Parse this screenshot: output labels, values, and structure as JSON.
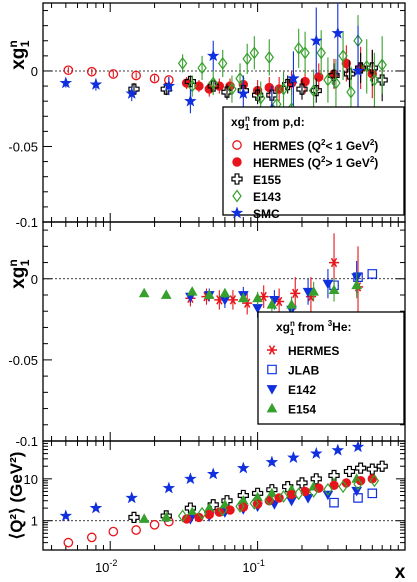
{
  "colors": {
    "red": "#e8141c",
    "blue": "#1030e0",
    "green": "#36a02c",
    "black": "#000000"
  },
  "chart_data": [
    {
      "type": "scatter",
      "panel": "top",
      "xscale": "log",
      "xlim": [
        0.0035,
        1.0
      ],
      "ylim": [
        -0.1,
        0.045
      ],
      "yticks": [
        0,
        -0.05,
        -0.1
      ],
      "ytick_labels": [
        "0",
        "-0.05",
        "-0.1"
      ],
      "ylabel": {
        "base": "xg",
        "sup": "n",
        "sub": "1"
      },
      "zero_line": true,
      "legend": {
        "placement": "bottom-right",
        "title": {
          "base": "xg",
          "sup": "n",
          "sub": "1",
          "tail": " from p,d:"
        },
        "entries": [
          {
            "series": 0,
            "parts": [
              "HERMES (Q",
              "2",
              "< 1 GeV",
              "2",
              ")"
            ]
          },
          {
            "series": 1,
            "parts": [
              "HERMES (Q",
              "2",
              "> 1 GeV",
              "2",
              ")"
            ]
          },
          {
            "series": 2,
            "parts": [
              "E155"
            ]
          },
          {
            "series": 3,
            "parts": [
              "E143"
            ]
          },
          {
            "series": 4,
            "parts": [
              "SMC"
            ]
          }
        ]
      },
      "series": [
        {
          "name": "HERMES (Q2< 1 GeV2)",
          "marker": "open-circle",
          "color": "#e8141c",
          "x": [
            0.0052,
            0.0075,
            0.0105,
            0.015,
            0.02,
            0.025
          ],
          "y": [
            0.0005,
            -0.0005,
            -0.002,
            -0.003,
            -0.005,
            -0.006
          ],
          "err": [
            0.002,
            0.002,
            0.002,
            0.002,
            0.002,
            0.002
          ]
        },
        {
          "name": "HERMES (Q2> 1 GeV2)",
          "marker": "filled-circle",
          "color": "#e8141c",
          "x": [
            0.033,
            0.04,
            0.047,
            0.055,
            0.065,
            0.08,
            0.1,
            0.12,
            0.14,
            0.17,
            0.21,
            0.26,
            0.33,
            0.4,
            0.5,
            0.6
          ],
          "y": [
            -0.008,
            -0.01,
            -0.012,
            -0.01,
            -0.01,
            -0.009,
            -0.013,
            -0.011,
            -0.012,
            -0.008,
            -0.007,
            -0.004,
            -0.002,
            0.005,
            0.002,
            -0.002
          ],
          "err": [
            0.004,
            0.004,
            0.005,
            0.005,
            0.005,
            0.006,
            0.007,
            0.007,
            0.008,
            0.008,
            0.008,
            0.009,
            0.01,
            0.012,
            0.014,
            0.016
          ]
        },
        {
          "name": "E155",
          "marker": "open-cross",
          "color": "#000000",
          "x": [
            0.0145,
            0.024,
            0.035,
            0.05,
            0.062,
            0.08,
            0.1,
            0.125,
            0.16,
            0.2,
            0.25,
            0.33,
            0.42,
            0.5,
            0.6,
            0.7
          ],
          "y": [
            -0.012,
            -0.012,
            -0.007,
            -0.01,
            -0.014,
            -0.013,
            -0.016,
            -0.016,
            -0.009,
            -0.012,
            -0.013,
            -0.003,
            -0.002,
            0.002,
            0.002,
            -0.006
          ],
          "err": [
            0.004,
            0.004,
            0.004,
            0.004,
            0.005,
            0.005,
            0.006,
            0.006,
            0.006,
            0.007,
            0.008,
            0.008,
            0.009,
            0.01,
            0.012,
            0.014
          ]
        },
        {
          "name": "E143",
          "marker": "open-diamond",
          "color": "#36a02c",
          "x": [
            0.031,
            0.036,
            0.042,
            0.05,
            0.058,
            0.067,
            0.076,
            0.085,
            0.095,
            0.105,
            0.12,
            0.135,
            0.15,
            0.17,
            0.19,
            0.21,
            0.24,
            0.27,
            0.3,
            0.34,
            0.38,
            0.43,
            0.48,
            0.55,
            0.62,
            0.7
          ],
          "y": [
            0.005,
            -0.01,
            0.002,
            -0.008,
            0.005,
            -0.012,
            -0.005,
            0.008,
            0.012,
            -0.018,
            0.009,
            -0.022,
            -0.012,
            -0.025,
            0.015,
            0.012,
            -0.013,
            0.012,
            -0.006,
            -0.008,
            0.01,
            -0.014,
            0.02,
            0.003,
            -0.006,
            0.004
          ],
          "err": [
            0.006,
            0.007,
            0.008,
            0.008,
            0.009,
            0.009,
            0.01,
            0.01,
            0.011,
            0.011,
            0.012,
            0.012,
            0.012,
            0.013,
            0.013,
            0.014,
            0.014,
            0.015,
            0.015,
            0.016,
            0.016,
            0.017,
            0.017,
            0.018,
            0.018,
            0.019
          ]
        },
        {
          "name": "SMC",
          "marker": "star",
          "color": "#1030e0",
          "x": [
            0.005,
            0.008,
            0.014,
            0.025,
            0.035,
            0.05,
            0.08,
            0.125,
            0.175,
            0.25,
            0.35,
            0.48
          ],
          "y": [
            -0.008,
            -0.009,
            -0.015,
            -0.01,
            -0.02,
            0.01,
            -0.015,
            -0.025,
            -0.005,
            0.02,
            0.025,
            0.0
          ],
          "err": [
            0.003,
            0.004,
            0.005,
            0.006,
            0.008,
            0.01,
            0.012,
            0.015,
            0.018,
            0.022,
            0.028,
            0.03
          ]
        }
      ]
    },
    {
      "type": "scatter",
      "panel": "middle",
      "xscale": "log",
      "xlim": [
        0.0035,
        1.0
      ],
      "ylim": [
        -0.1,
        0.035
      ],
      "yticks": [
        0,
        -0.05,
        -0.1
      ],
      "ytick_labels": [
        "0",
        "-0.05",
        "-0.1"
      ],
      "ylabel": {
        "base": "xg",
        "sup": "n",
        "sub": "1"
      },
      "zero_line": true,
      "legend": {
        "placement": "bottom-right",
        "title": {
          "base": "xg",
          "sup": "n",
          "sub": "1",
          "tail": " from ",
          "pre_sup": "3",
          "after": "He:"
        },
        "entries": [
          {
            "series": 0,
            "parts": [
              "HERMES"
            ]
          },
          {
            "series": 1,
            "parts": [
              "JLAB"
            ]
          },
          {
            "series": 2,
            "parts": [
              "E142"
            ]
          },
          {
            "series": 3,
            "parts": [
              "E154"
            ]
          }
        ]
      },
      "series": [
        {
          "name": "HERMES",
          "marker": "asterisk",
          "color": "#e8141c",
          "x": [
            0.035,
            0.045,
            0.055,
            0.068,
            0.085,
            0.11,
            0.14,
            0.18,
            0.23,
            0.33,
            0.48
          ],
          "y": [
            -0.012,
            -0.011,
            -0.013,
            -0.013,
            -0.015,
            -0.011,
            -0.014,
            -0.009,
            -0.011,
            0.01,
            -0.005
          ],
          "err": [
            0.005,
            0.005,
            0.006,
            0.006,
            0.007,
            0.007,
            0.008,
            0.01,
            0.012,
            0.018,
            0.025
          ]
        },
        {
          "name": "JLAB",
          "marker": "open-square",
          "color": "#1030e0",
          "x": [
            0.33,
            0.48,
            0.6
          ],
          "y": [
            -0.004,
            0.001,
            0.003
          ],
          "err": [
            0.0,
            0.0,
            0.0
          ]
        },
        {
          "name": "E142",
          "marker": "filled-triangle-down",
          "color": "#1030e0",
          "x": [
            0.035,
            0.047,
            0.06,
            0.08,
            0.1,
            0.13,
            0.17,
            0.22,
            0.3,
            0.47
          ],
          "y": [
            -0.011,
            -0.01,
            -0.013,
            -0.01,
            -0.018,
            -0.013,
            -0.019,
            -0.008,
            -0.003,
            0.001
          ],
          "err": [
            0.004,
            0.004,
            0.005,
            0.005,
            0.006,
            0.006,
            0.007,
            0.008,
            0.009,
            0.01
          ]
        },
        {
          "name": "E154",
          "marker": "filled-triangle-up",
          "color": "#36a02c",
          "x": [
            0.017,
            0.024,
            0.036,
            0.047,
            0.06,
            0.08,
            0.1,
            0.125,
            0.17,
            0.24,
            0.33,
            0.47
          ],
          "y": [
            -0.009,
            -0.01,
            -0.008,
            -0.01,
            -0.009,
            -0.012,
            -0.012,
            -0.016,
            -0.016,
            -0.008,
            -0.007,
            -0.004
          ],
          "err": [
            0.002,
            0.002,
            0.002,
            0.003,
            0.003,
            0.003,
            0.004,
            0.004,
            0.005,
            0.006,
            0.007,
            0.008
          ]
        }
      ]
    },
    {
      "type": "scatter",
      "panel": "bottom",
      "xscale": "log",
      "yscale": "log",
      "xlim": [
        0.0035,
        1.0
      ],
      "ylim": [
        0.2,
        80
      ],
      "yticks": [
        1,
        10
      ],
      "ytick_labels": [
        "1",
        "10"
      ],
      "ylabel": "⟨Q²⟩ (GeV²)",
      "ref_line": 1,
      "xticks": [
        0.01,
        0.1
      ],
      "xtick_labels": [
        {
          "base": "10",
          "sup": "-2"
        },
        {
          "base": "10",
          "sup": "-1"
        }
      ],
      "xlabel": "x",
      "series": [
        {
          "name": "SMC",
          "marker": "star",
          "color": "#1030e0",
          "x": [
            0.005,
            0.008,
            0.014,
            0.025,
            0.035,
            0.05,
            0.08,
            0.125,
            0.175,
            0.25,
            0.35,
            0.48
          ],
          "y": [
            1.3,
            2.0,
            3.5,
            6,
            10,
            13,
            18,
            25,
            32,
            40,
            48,
            58
          ]
        },
        {
          "name": "HERMES (Q2< 1 GeV2)",
          "marker": "open-circle",
          "color": "#e8141c",
          "x": [
            0.0052,
            0.0075,
            0.0105,
            0.015,
            0.02,
            0.025
          ],
          "y": [
            0.3,
            0.4,
            0.55,
            0.6,
            0.8,
            0.95
          ]
        },
        {
          "name": "E155",
          "marker": "open-cross",
          "color": "#000000",
          "x": [
            0.0145,
            0.024,
            0.035,
            0.05,
            0.062,
            0.08,
            0.1,
            0.125,
            0.16,
            0.2,
            0.25,
            0.33,
            0.42,
            0.5,
            0.6,
            0.7
          ],
          "y": [
            1.2,
            1.3,
            2.0,
            2.4,
            3.0,
            4.0,
            4.5,
            5.5,
            6.5,
            8,
            10,
            12,
            15,
            18,
            17,
            20
          ]
        },
        {
          "name": "E154",
          "marker": "filled-triangle-up",
          "color": "#36a02c",
          "x": [
            0.017,
            0.024,
            0.036,
            0.047,
            0.06,
            0.08,
            0.1,
            0.125,
            0.17,
            0.24,
            0.33,
            0.47
          ],
          "y": [
            1.1,
            1.2,
            1.6,
            2.0,
            2.4,
            3.0,
            3.6,
            4.5,
            5.5,
            6.5,
            8,
            10
          ]
        },
        {
          "name": "E142",
          "marker": "filled-triangle-down",
          "color": "#1030e0",
          "x": [
            0.035,
            0.047,
            0.06,
            0.08,
            0.1,
            0.13,
            0.17,
            0.22,
            0.3,
            0.47
          ],
          "y": [
            1.1,
            1.3,
            1.6,
            1.9,
            2.2,
            2.5,
            3.0,
            3.5,
            4.2,
            5.2
          ]
        },
        {
          "name": "HERMES (Q2> 1 GeV2)",
          "marker": "filled-circle",
          "color": "#e8141c",
          "x": [
            0.033,
            0.04,
            0.047,
            0.055,
            0.065,
            0.08,
            0.1,
            0.12,
            0.14,
            0.17,
            0.21,
            0.26,
            0.33,
            0.4,
            0.5,
            0.6
          ],
          "y": [
            1.1,
            1.2,
            1.4,
            1.6,
            1.8,
            2.1,
            2.5,
            3.0,
            3.5,
            4.2,
            5.0,
            6.0,
            7.0,
            8.0,
            9.0,
            10
          ]
        },
        {
          "name": "E143",
          "marker": "open-diamond",
          "color": "#36a02c",
          "x": [
            0.031,
            0.042,
            0.058,
            0.076,
            0.095,
            0.12,
            0.15,
            0.19,
            0.24,
            0.3,
            0.38,
            0.48,
            0.62
          ],
          "y": [
            1.3,
            1.5,
            1.8,
            2.2,
            2.6,
            3.2,
            3.8,
            4.4,
            5.0,
            5.6,
            6.5,
            7.5,
            9.0
          ]
        },
        {
          "name": "JLAB",
          "marker": "open-square",
          "color": "#1030e0",
          "x": [
            0.33,
            0.48,
            0.6
          ],
          "y": [
            2.7,
            3.5,
            4.5
          ]
        }
      ]
    }
  ]
}
